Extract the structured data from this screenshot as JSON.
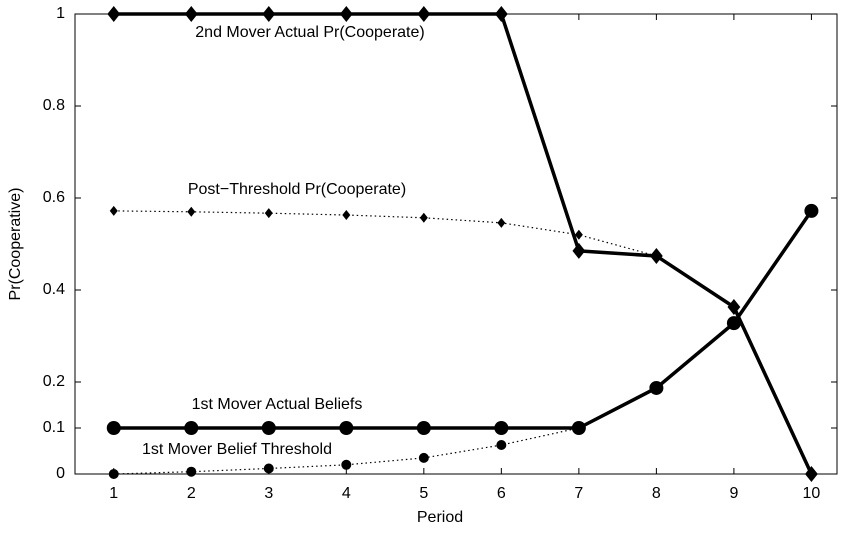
{
  "chart_data": {
    "type": "line",
    "xlabel": "Period",
    "ylabel": "Pr(Cooperative)",
    "x": [
      1,
      2,
      3,
      4,
      5,
      6,
      7,
      8,
      9,
      10
    ],
    "xlim": [
      0.5,
      10.33
    ],
    "xticks": [
      1,
      2,
      3,
      4,
      5,
      6,
      7,
      8,
      9,
      10
    ],
    "ylim": [
      0,
      1
    ],
    "yticks": [
      0,
      0.1,
      0.2,
      0.4,
      0.6,
      0.8,
      1
    ],
    "series": [
      {
        "name": "2nd Mover Actual Pr(Cooperate)",
        "color": "#000000",
        "line_style": "solid",
        "marker": "diamond",
        "marker_size": "large",
        "values": [
          1,
          1,
          1,
          1,
          1,
          1,
          0.485,
          0.474,
          0.363,
          0
        ]
      },
      {
        "name": "Post−Threshold Pr(Cooperate)",
        "color": "#000000",
        "line_style": "dotted",
        "marker": "diamond",
        "marker_size": "small",
        "values": [
          0.572,
          0.57,
          0.567,
          0.563,
          0.557,
          0.546,
          0.52,
          0.474,
          null,
          null
        ]
      },
      {
        "name": "1st Mover Actual Beliefs",
        "color": "#000000",
        "line_style": "solid",
        "marker": "circle",
        "marker_size": "large",
        "values": [
          0.1,
          0.1,
          0.1,
          0.1,
          0.1,
          0.1,
          0.1,
          0.187,
          0.328,
          0.572
        ]
      },
      {
        "name": "1st Mover Belief Threshold",
        "color": "#000000",
        "line_style": "dotted",
        "marker": "circle",
        "marker_size": "small",
        "values": [
          0,
          0.005,
          0.012,
          0.02,
          0.035,
          0.063,
          0.1,
          null,
          null,
          null
        ]
      }
    ]
  }
}
